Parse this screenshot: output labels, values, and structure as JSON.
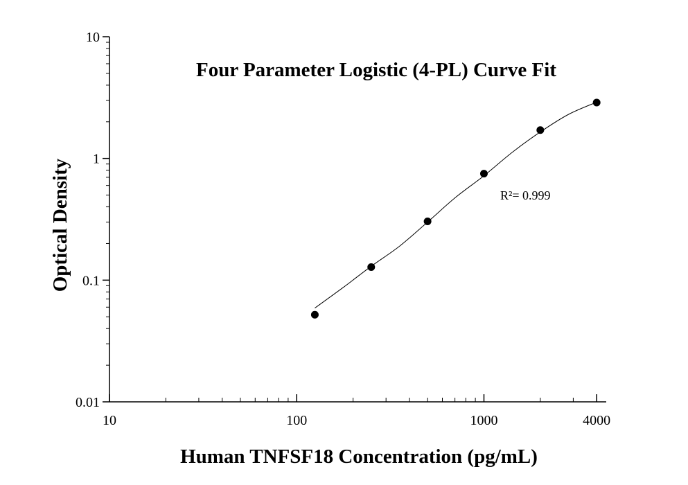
{
  "chart_data": {
    "type": "scatter",
    "title": "Four Parameter Logistic (4-PL) Curve Fit",
    "xlabel": "Human TNFSF18 Concentration (pg/mL)",
    "ylabel": "Optical Density",
    "annotation": "R²= 0.999",
    "xscale": "log",
    "yscale": "log",
    "xlim": [
      10,
      4500
    ],
    "ylim": [
      0.01,
      10
    ],
    "xticks": [
      10,
      100,
      1000,
      4000
    ],
    "yticks": [
      0.01,
      0.1,
      1,
      10
    ],
    "series": [
      {
        "type": "scatter",
        "color": "#000000",
        "x": [
          125,
          250,
          500,
          1000,
          2000,
          4000
        ],
        "values": [
          0.052,
          0.128,
          0.304,
          0.75,
          1.71,
          2.88
        ]
      },
      {
        "type": "line",
        "color": "#000000",
        "x": [
          125,
          177,
          250,
          354,
          500,
          707,
          1000,
          1414,
          2000,
          2828,
          4000
        ],
        "values": [
          0.059,
          0.087,
          0.13,
          0.19,
          0.3,
          0.48,
          0.72,
          1.12,
          1.65,
          2.3,
          2.9
        ]
      }
    ]
  }
}
